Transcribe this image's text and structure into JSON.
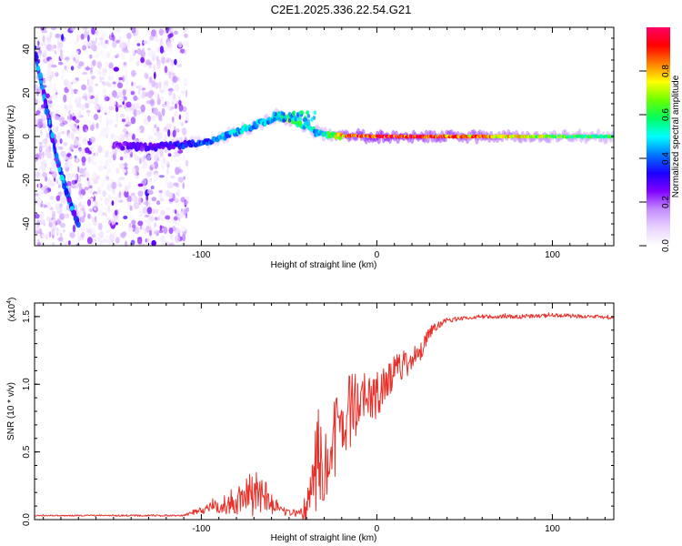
{
  "title": "C2E1.2025.336.22.54.G21",
  "chart_data": [
    {
      "type": "heatmap",
      "name": "spectrogram",
      "xlabel": "Height of straight line (km)",
      "ylabel": "Frequency (Hz)",
      "xlim": [
        -195,
        135
      ],
      "ylim": [
        -50,
        50
      ],
      "xticks": [
        -100,
        0,
        100
      ],
      "xtick_labels": [
        "-100",
        "0",
        "100"
      ],
      "yticks": [
        40,
        20,
        0,
        -20,
        -40
      ],
      "ytick_labels": [
        "40",
        "20",
        "0",
        "-20",
        "-40"
      ],
      "colorbar": {
        "label": "Normalized spectral amplitude",
        "range": [
          0,
          1
        ],
        "ticks": [
          0.0,
          0.2,
          0.4,
          0.6,
          0.8
        ],
        "tick_labels": [
          "0.0",
          "0.2",
          "0.4",
          "0.6",
          "0.8"
        ],
        "colors": [
          "#ffffff",
          "#e9d3ff",
          "#c38cff",
          "#8000ff",
          "#1a00ff",
          "#0078ff",
          "#00ffff",
          "#00ff60",
          "#6aff00",
          "#ffff00",
          "#ff8000",
          "#ff0000",
          "#ff0066"
        ]
      },
      "features": [
        {
          "name": "diagonal-streak",
          "x": [
            -195,
            -183,
            -175,
            -170
          ],
          "y": [
            40,
            -8,
            -30,
            -40
          ],
          "amplitude": 0.35
        },
        {
          "name": "main-ridge",
          "x": [
            -150,
            -130,
            -115,
            -100,
            -90,
            -80,
            -70,
            -60,
            -55,
            -50,
            -45,
            -40,
            -35,
            -30,
            -25,
            -20,
            -10,
            0,
            20,
            60,
            100,
            135
          ],
          "y": [
            -4,
            -5,
            -4,
            -3,
            -1,
            2,
            5,
            8,
            10,
            8,
            6,
            5,
            2,
            1,
            0.5,
            0.3,
            0.2,
            0,
            0,
            0,
            0,
            0
          ],
          "amplitude": [
            0.25,
            0.3,
            0.35,
            0.4,
            0.45,
            0.5,
            0.5,
            0.5,
            0.55,
            0.7,
            0.6,
            0.55,
            0.5,
            0.6,
            0.7,
            0.85,
            0.95,
            1.0,
            0.95,
            0.85,
            0.7,
            0.6
          ]
        },
        {
          "name": "noise-band",
          "x_range": [
            -195,
            -108
          ],
          "y_range": [
            -50,
            50
          ],
          "amplitude": 0.15
        }
      ]
    },
    {
      "type": "line",
      "name": "snr",
      "xlabel": "Height of straight line (km)",
      "ylabel": "SNR (10 * v/v)",
      "multiplier": "(x10",
      "multiplier_exp": "4",
      "multiplier_close": ")",
      "xlim": [
        -195,
        135
      ],
      "ylim": [
        0,
        1.6
      ],
      "xticks": [
        -100,
        0,
        100
      ],
      "xtick_labels": [
        "-100",
        "0",
        "100"
      ],
      "yticks": [
        0.0,
        0.5,
        1.0,
        1.5
      ],
      "ytick_labels": [
        "0.0",
        "0.5",
        "1.0",
        "1.5"
      ],
      "color": "#e8302a",
      "series": [
        {
          "name": "SNR",
          "x": [
            -195,
            -150,
            -110,
            -100,
            -90,
            -80,
            -75,
            -70,
            -65,
            -60,
            -55,
            -50,
            -45,
            -40,
            -35,
            -30,
            -25,
            -20,
            -15,
            -10,
            -5,
            0,
            5,
            10,
            15,
            20,
            25,
            30,
            35,
            40,
            50,
            60,
            80,
            100,
            120,
            135
          ],
          "values": [
            0.03,
            0.03,
            0.03,
            0.07,
            0.1,
            0.12,
            0.17,
            0.2,
            0.22,
            0.12,
            0.07,
            0.05,
            0.05,
            0.1,
            0.35,
            0.5,
            0.55,
            0.7,
            0.82,
            0.85,
            0.9,
            0.92,
            1.0,
            1.07,
            1.12,
            1.18,
            1.25,
            1.38,
            1.43,
            1.47,
            1.49,
            1.5,
            1.5,
            1.51,
            1.5,
            1.49
          ],
          "noise": [
            0.005,
            0.006,
            0.006,
            0.03,
            0.05,
            0.1,
            0.14,
            0.18,
            0.16,
            0.08,
            0.04,
            0.02,
            0.03,
            0.15,
            0.35,
            0.4,
            0.35,
            0.3,
            0.3,
            0.22,
            0.2,
            0.18,
            0.14,
            0.12,
            0.1,
            0.08,
            0.08,
            0.05,
            0.03,
            0.02,
            0.015,
            0.015,
            0.015,
            0.015,
            0.015,
            0.015
          ]
        }
      ]
    }
  ]
}
